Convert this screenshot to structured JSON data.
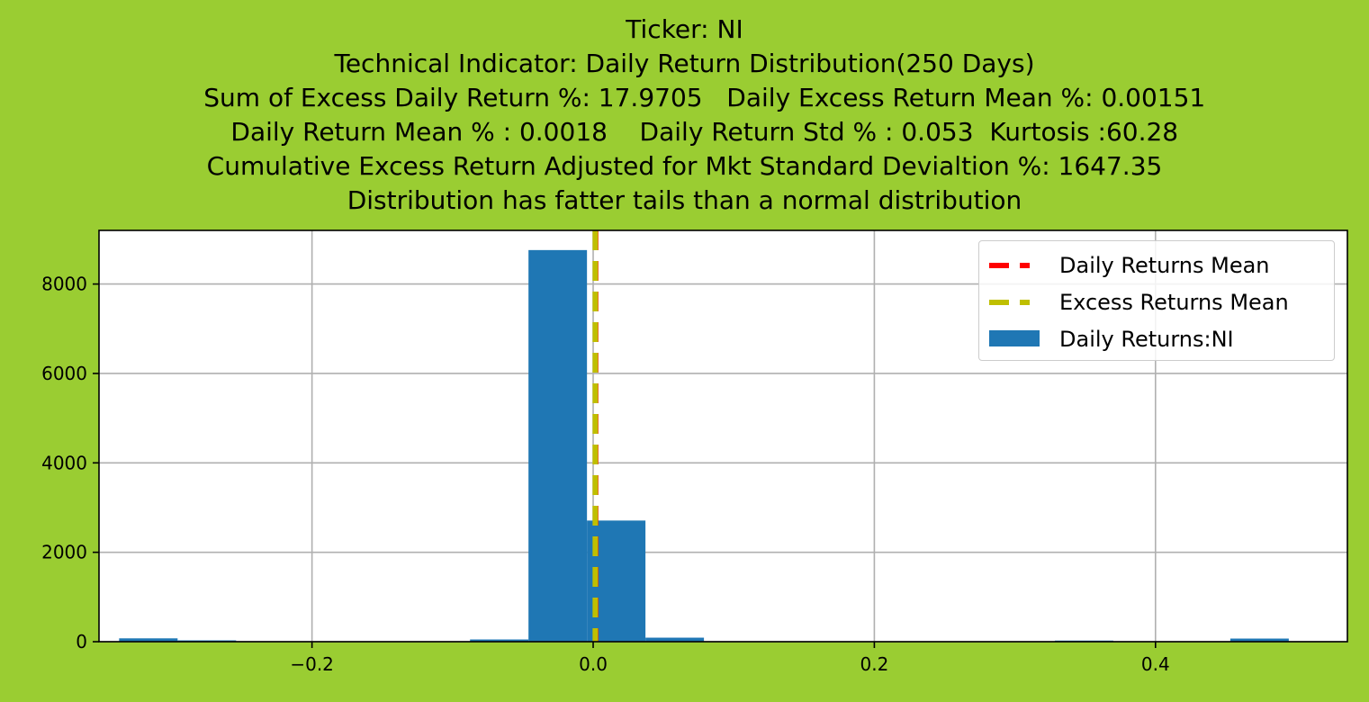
{
  "title_lines": [
    "Ticker: NI",
    "Technical Indicator: Daily Return Distribution(250 Days)",
    "     Sum of Excess Daily Return %: 17.9705   Daily Excess Return Mean %: 0.00151",
    "     Daily Return Mean % : 0.0018    Daily Return Std % : 0.053  Kurtosis :60.28",
    "Cumulative Excess Return Adjusted for Mkt Standard Devialtion %: 1647.35",
    "Distribution has fatter tails than a normal distribution"
  ],
  "colors": {
    "background": "#9acd32",
    "bars": "#1f77b4",
    "daily_mean_line": "#ff0000",
    "excess_mean_line": "#bfbf00",
    "grid": "#b0b0b0"
  },
  "chart_data": {
    "type": "bar",
    "title": "Ticker: NI",
    "xlabel": "",
    "ylabel": "",
    "xlim": [
      -0.3515,
      0.5365
    ],
    "ylim": [
      0,
      9200
    ],
    "xticks": [
      -0.2,
      0.0,
      0.2,
      0.4
    ],
    "xtick_labels": [
      "−0.2",
      "0.0",
      "0.2",
      "0.4"
    ],
    "yticks": [
      0,
      2000,
      4000,
      6000,
      8000
    ],
    "ytick_labels": [
      "0",
      "2000",
      "4000",
      "6000",
      "8000"
    ],
    "grid": true,
    "legend_placement": "top-right",
    "series": [
      {
        "name": "Daily Returns:NI",
        "bins": [
          [
            -0.3372,
            -0.2956,
            75
          ],
          [
            -0.2956,
            -0.254,
            30
          ],
          [
            -0.254,
            -0.2124,
            0
          ],
          [
            -0.2124,
            -0.1708,
            0
          ],
          [
            -0.1708,
            -0.1292,
            0
          ],
          [
            -0.1292,
            -0.0876,
            0
          ],
          [
            -0.0876,
            -0.046,
            50
          ],
          [
            -0.046,
            -0.0044,
            8760
          ],
          [
            -0.0044,
            0.0372,
            2710
          ],
          [
            0.0372,
            0.0788,
            90
          ],
          [
            0.0788,
            0.1204,
            0
          ],
          [
            0.1204,
            0.162,
            0
          ],
          [
            0.162,
            0.2036,
            0
          ],
          [
            0.2036,
            0.2452,
            0
          ],
          [
            0.2452,
            0.2868,
            0
          ],
          [
            0.2868,
            0.3284,
            0
          ],
          [
            0.3284,
            0.37,
            25
          ],
          [
            0.37,
            0.4116,
            0
          ],
          [
            0.4116,
            0.4532,
            0
          ],
          [
            0.4532,
            0.4948,
            70
          ]
        ]
      }
    ],
    "vlines": [
      {
        "name": "Daily Returns Mean",
        "x": 0.0018,
        "style": "dashed",
        "color": "#ff0000"
      },
      {
        "name": "Excess Returns Mean",
        "x": 0.00151,
        "style": "dashed",
        "color": "#bfbf00"
      }
    ],
    "legend": [
      "Daily Returns Mean",
      "Excess Returns Mean",
      "Daily Returns:NI"
    ]
  }
}
